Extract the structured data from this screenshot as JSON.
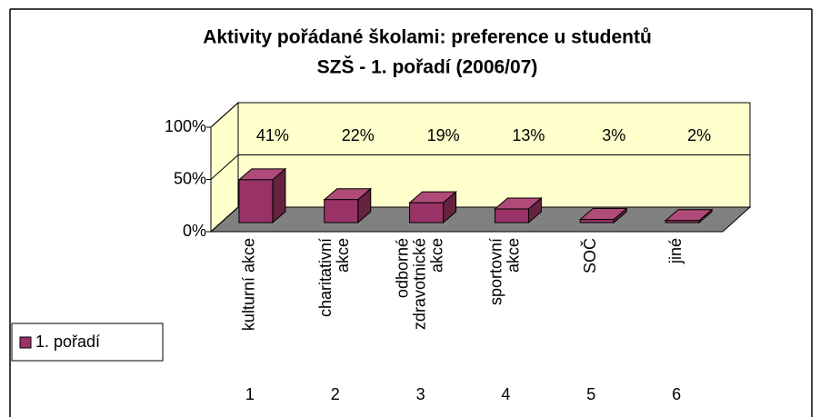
{
  "chart_data": {
    "type": "bar3d",
    "title": [
      "Aktivity pořádané školami: preference u studentů",
      "SZŠ - 1. pořadí (2006/07)"
    ],
    "categories": [
      [
        "kulturní akce"
      ],
      [
        "charitativní",
        "akce"
      ],
      [
        "odborné",
        "zdravotnické",
        "akce"
      ],
      [
        "sportovní",
        "akce"
      ],
      [
        "SOČ"
      ],
      [
        "jiné"
      ]
    ],
    "category_numbers": [
      1,
      2,
      3,
      4,
      5,
      6
    ],
    "series": [
      {
        "name": "1. pořadí",
        "color": "#993366",
        "values": [
          41,
          22,
          19,
          13,
          3,
          2
        ],
        "value_labels": [
          "41%",
          "22%",
          "19%",
          "13%",
          "3%",
          "2%"
        ]
      }
    ],
    "ylim": [
      0,
      100
    ],
    "yticks": [
      {
        "value": 0,
        "label": "0%"
      },
      {
        "value": 50,
        "label": "50%"
      },
      {
        "value": 100,
        "label": "100%"
      }
    ],
    "grid": true,
    "legend": "left"
  }
}
